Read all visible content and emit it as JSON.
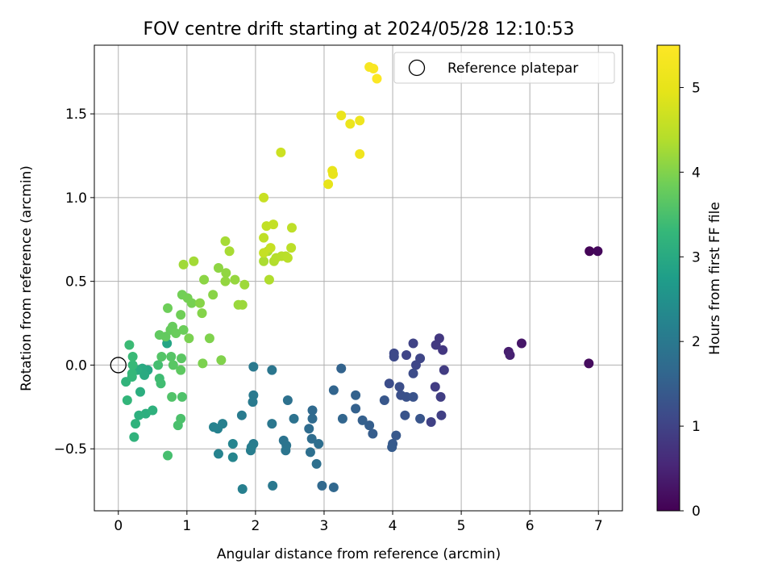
{
  "chart_data": {
    "type": "scatter",
    "title": "FOV centre drift starting at 2024/05/28 12:10:53",
    "xlabel": "Angular distance from reference (arcmin)",
    "ylabel": "Rotation from reference (arcmin)",
    "xlim": [
      -0.35,
      7.35
    ],
    "ylim": [
      -0.87,
      1.91
    ],
    "xticks": [
      0,
      1,
      2,
      3,
      4,
      5,
      6,
      7
    ],
    "yticks": [
      -0.5,
      0.0,
      0.5,
      1.0,
      1.5
    ],
    "xtick_labels": [
      "0",
      "1",
      "2",
      "3",
      "4",
      "5",
      "6",
      "7"
    ],
    "ytick_labels": [
      "−0.5",
      "0.0",
      "0.5",
      "1.0",
      "1.5"
    ],
    "grid": true,
    "legend": {
      "placement": "upper right",
      "label": "Reference platepar"
    },
    "reference_point": {
      "x": 0,
      "y": 0
    },
    "colorbar": {
      "label": "Hours from first FF file",
      "colormap": "viridis",
      "range": [
        0,
        5.5
      ],
      "ticks": [
        0,
        1,
        2,
        3,
        4,
        5
      ],
      "tick_labels": [
        "0",
        "1",
        "2",
        "3",
        "4",
        "5"
      ]
    },
    "series": [
      {
        "points": [
          [
            6.87,
            0.68,
            0.05
          ],
          [
            6.99,
            0.68,
            0.1
          ],
          [
            6.86,
            0.01,
            0.15
          ],
          [
            5.88,
            0.13,
            0.3
          ],
          [
            5.69,
            0.08,
            0.4
          ],
          [
            5.71,
            0.06,
            0.45
          ],
          [
            4.73,
            0.09,
            0.8
          ],
          [
            4.68,
            0.16,
            0.82
          ],
          [
            4.63,
            0.12,
            0.85
          ],
          [
            4.75,
            -0.03,
            0.88
          ],
          [
            4.62,
            -0.13,
            0.9
          ],
          [
            4.7,
            -0.19,
            0.92
          ],
          [
            4.71,
            -0.3,
            0.95
          ],
          [
            4.56,
            -0.34,
            0.97
          ],
          [
            4.3,
            0.13,
            1.0
          ],
          [
            4.2,
            0.06,
            1.02
          ],
          [
            4.4,
            0.04,
            1.05
          ],
          [
            4.34,
            0.0,
            1.07
          ],
          [
            4.02,
            0.07,
            1.1
          ],
          [
            4.02,
            0.05,
            1.12
          ],
          [
            4.3,
            -0.05,
            1.15
          ],
          [
            3.95,
            -0.11,
            1.17
          ],
          [
            4.1,
            -0.13,
            1.2
          ],
          [
            4.12,
            -0.18,
            1.22
          ],
          [
            4.2,
            -0.19,
            1.25
          ],
          [
            4.3,
            -0.19,
            1.27
          ],
          [
            4.18,
            -0.3,
            1.3
          ],
          [
            4.4,
            -0.32,
            1.32
          ],
          [
            3.88,
            -0.21,
            1.35
          ],
          [
            4.05,
            -0.42,
            1.37
          ],
          [
            4.0,
            -0.47,
            1.4
          ],
          [
            3.99,
            -0.49,
            1.42
          ],
          [
            3.71,
            -0.41,
            1.45
          ],
          [
            3.66,
            -0.36,
            1.47
          ],
          [
            3.56,
            -0.33,
            1.5
          ],
          [
            3.46,
            -0.26,
            1.52
          ],
          [
            3.46,
            -0.18,
            1.55
          ],
          [
            3.25,
            -0.02,
            1.57
          ],
          [
            3.14,
            -0.15,
            1.6
          ],
          [
            3.27,
            -0.32,
            1.62
          ],
          [
            3.14,
            -0.73,
            1.65
          ],
          [
            2.97,
            -0.72,
            1.67
          ],
          [
            2.83,
            -0.27,
            1.7
          ],
          [
            2.83,
            -0.32,
            1.72
          ],
          [
            2.78,
            -0.38,
            1.74
          ],
          [
            2.82,
            -0.44,
            1.76
          ],
          [
            2.92,
            -0.47,
            1.78
          ],
          [
            2.8,
            -0.52,
            1.8
          ],
          [
            2.89,
            -0.59,
            1.82
          ],
          [
            2.47,
            -0.21,
            1.84
          ],
          [
            2.56,
            -0.32,
            1.86
          ],
          [
            2.41,
            -0.45,
            1.88
          ],
          [
            2.45,
            -0.48,
            1.9
          ],
          [
            2.44,
            -0.51,
            1.92
          ],
          [
            2.24,
            -0.03,
            1.94
          ],
          [
            2.24,
            -0.35,
            1.96
          ],
          [
            2.25,
            -0.72,
            1.98
          ],
          [
            1.97,
            -0.01,
            2.0
          ],
          [
            1.97,
            -0.18,
            2.02
          ],
          [
            1.96,
            -0.22,
            2.04
          ],
          [
            1.8,
            -0.3,
            2.06
          ],
          [
            1.97,
            -0.47,
            2.08
          ],
          [
            1.94,
            -0.49,
            2.1
          ],
          [
            1.93,
            -0.51,
            2.12
          ],
          [
            1.81,
            -0.74,
            2.14
          ],
          [
            1.52,
            -0.35,
            2.16
          ],
          [
            1.45,
            -0.38,
            2.18
          ],
          [
            1.39,
            -0.37,
            2.2
          ],
          [
            1.46,
            -0.53,
            2.22
          ],
          [
            1.67,
            -0.47,
            2.24
          ],
          [
            1.67,
            -0.55,
            2.26
          ],
          [
            0.71,
            0.13,
            2.9
          ],
          [
            0.43,
            -0.03,
            2.95
          ],
          [
            0.35,
            -0.02,
            3.0
          ],
          [
            0.38,
            -0.06,
            3.02
          ],
          [
            0.28,
            -0.03,
            3.05
          ],
          [
            0.32,
            -0.16,
            3.08
          ],
          [
            0.4,
            -0.29,
            3.1
          ],
          [
            0.3,
            -0.3,
            3.12
          ],
          [
            0.5,
            -0.27,
            3.15
          ],
          [
            0.25,
            -0.35,
            3.18
          ],
          [
            0.23,
            -0.43,
            3.2
          ],
          [
            0.11,
            -0.1,
            3.22
          ],
          [
            0.13,
            -0.21,
            3.25
          ],
          [
            0.2,
            -0.07,
            3.27
          ],
          [
            0.2,
            -0.05,
            3.3
          ],
          [
            0.21,
            0.0,
            3.32
          ],
          [
            0.21,
            0.05,
            3.35
          ],
          [
            0.16,
            0.12,
            3.37
          ],
          [
            0.6,
            -0.08,
            3.4
          ],
          [
            0.62,
            -0.11,
            3.42
          ],
          [
            0.58,
            0.0,
            3.45
          ],
          [
            0.72,
            -0.54,
            3.47
          ],
          [
            0.87,
            -0.36,
            3.5
          ],
          [
            0.91,
            -0.32,
            3.52
          ],
          [
            0.93,
            -0.19,
            3.55
          ],
          [
            0.78,
            -0.19,
            3.57
          ],
          [
            0.63,
            0.05,
            3.6
          ],
          [
            0.77,
            0.05,
            3.62
          ],
          [
            0.8,
            0.0,
            3.65
          ],
          [
            0.92,
            0.04,
            3.67
          ],
          [
            0.91,
            -0.03,
            3.7
          ],
          [
            0.6,
            0.18,
            3.72
          ],
          [
            0.69,
            0.17,
            3.74
          ],
          [
            0.76,
            0.21,
            3.76
          ],
          [
            0.79,
            0.23,
            3.78
          ],
          [
            0.84,
            0.19,
            3.8
          ],
          [
            0.95,
            0.21,
            3.82
          ],
          [
            0.72,
            0.34,
            3.84
          ],
          [
            0.91,
            0.3,
            3.86
          ],
          [
            0.93,
            0.42,
            3.88
          ],
          [
            1.01,
            0.4,
            3.9
          ],
          [
            1.07,
            0.37,
            3.92
          ],
          [
            1.03,
            0.16,
            3.94
          ],
          [
            1.23,
            0.01,
            3.96
          ],
          [
            1.33,
            0.16,
            3.98
          ],
          [
            1.5,
            0.03,
            4.0
          ],
          [
            1.22,
            0.31,
            4.02
          ],
          [
            1.19,
            0.37,
            4.04
          ],
          [
            1.38,
            0.42,
            4.06
          ],
          [
            1.25,
            0.51,
            4.08
          ],
          [
            1.46,
            0.58,
            4.1
          ],
          [
            1.57,
            0.55,
            4.12
          ],
          [
            1.56,
            0.5,
            4.14
          ],
          [
            1.7,
            0.51,
            4.16
          ],
          [
            1.75,
            0.36,
            4.18
          ],
          [
            1.81,
            0.36,
            4.2
          ],
          [
            1.84,
            0.48,
            4.22
          ],
          [
            0.95,
            0.6,
            4.24
          ],
          [
            1.1,
            0.62,
            4.26
          ],
          [
            1.56,
            0.74,
            4.28
          ],
          [
            1.62,
            0.68,
            4.3
          ],
          [
            2.12,
            0.62,
            4.32
          ],
          [
            2.18,
            0.68,
            4.34
          ],
          [
            2.2,
            0.51,
            4.36
          ],
          [
            2.27,
            0.62,
            4.38
          ],
          [
            2.3,
            0.64,
            4.4
          ],
          [
            2.38,
            0.65,
            4.42
          ],
          [
            2.44,
            0.65,
            4.44
          ],
          [
            2.47,
            0.64,
            4.46
          ],
          [
            2.52,
            0.7,
            4.48
          ],
          [
            2.53,
            0.82,
            4.5
          ],
          [
            2.12,
            0.76,
            4.52
          ],
          [
            2.16,
            0.83,
            4.54
          ],
          [
            2.26,
            0.84,
            4.56
          ],
          [
            2.12,
            0.67,
            4.58
          ],
          [
            2.22,
            0.7,
            4.6
          ],
          [
            2.12,
            1.0,
            4.62
          ],
          [
            2.37,
            1.27,
            4.66
          ],
          [
            3.06,
            1.08,
            5.0
          ],
          [
            3.12,
            1.16,
            5.02
          ],
          [
            3.13,
            1.14,
            5.04
          ],
          [
            3.25,
            1.49,
            5.08
          ],
          [
            3.38,
            1.44,
            5.12
          ],
          [
            3.52,
            1.46,
            5.16
          ],
          [
            3.52,
            1.26,
            5.2
          ],
          [
            3.66,
            1.78,
            5.35
          ],
          [
            3.72,
            1.77,
            5.4
          ],
          [
            3.77,
            1.71,
            5.45
          ]
        ]
      }
    ]
  }
}
